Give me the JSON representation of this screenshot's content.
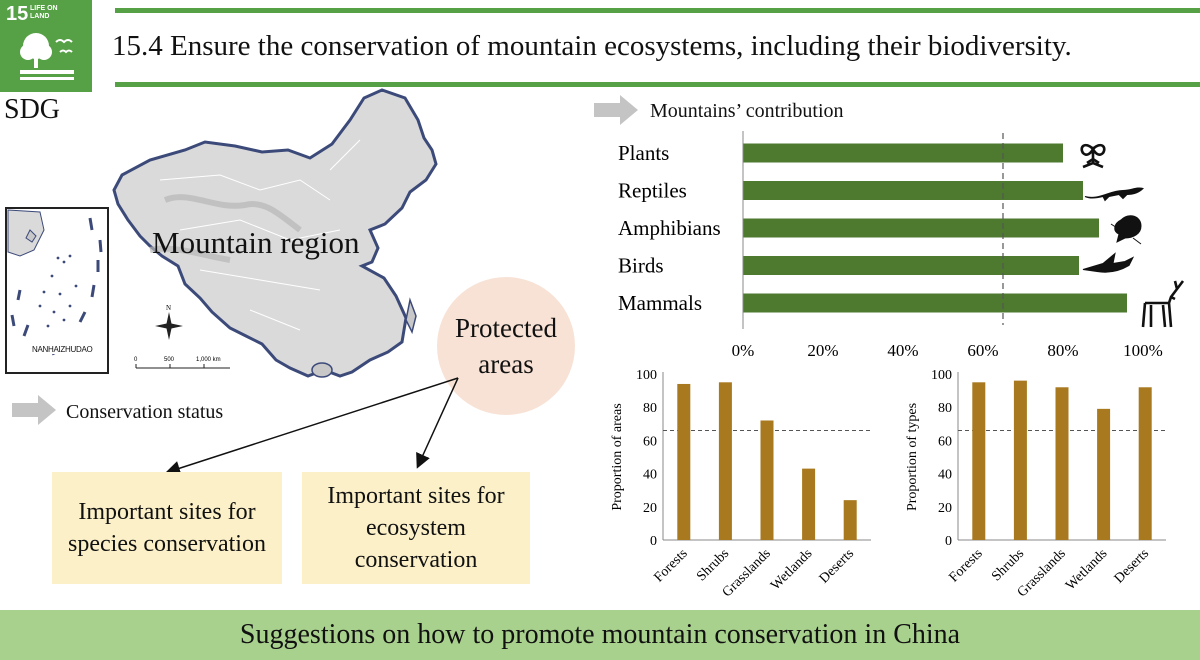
{
  "sdg": {
    "goal_number": "15",
    "goal_name": "LIFE ON LAND",
    "label": "SDG",
    "badge_color": "#56a045"
  },
  "title": "15.4 Ensure the conservation of mountain ecosystems, including their biodiversity.",
  "map": {
    "region_label": "Mountain region",
    "inset_label": "NANHAIZHUDAO",
    "north_label": "N",
    "scale_ticks": [
      "0",
      "500",
      "1,000 km"
    ]
  },
  "conservation_status": {
    "label": "Conservation status",
    "hub": "Protected areas",
    "site_species": "Important sites for species conservation",
    "site_ecosystem": "Important sites for ecosystem conservation"
  },
  "contribution": {
    "label": "Mountains’ contribution"
  },
  "footer": "Suggestions on how to promote mountain conservation in China",
  "colors": {
    "green_bar": "#4e7a30",
    "gold_bar": "#a8791f",
    "title_rule": "#56a045",
    "footer_band": "#a9d18e",
    "hub_fill": "#f8e2d5",
    "box_fill": "#fbf0c8"
  },
  "chart_data": [
    {
      "type": "bar",
      "orientation": "horizontal",
      "categories": [
        "Plants",
        "Reptiles",
        "Amphibians",
        "Birds",
        "Mammals"
      ],
      "values": [
        80,
        85,
        89,
        84,
        96
      ],
      "xlim": [
        0,
        100
      ],
      "x_ticks": [
        "0%",
        "20%",
        "40%",
        "60%",
        "80%",
        "100%"
      ],
      "reference_line": 65,
      "icons": [
        "plant-icon",
        "reptile-icon",
        "frog-icon",
        "bird-icon",
        "deer-icon"
      ]
    },
    {
      "type": "bar",
      "categories": [
        "Forests",
        "Shrubs",
        "Grasslands",
        "Wetlands",
        "Deserts"
      ],
      "values": [
        94,
        95,
        72,
        43,
        24
      ],
      "ylabel": "Proportion of areas",
      "ylim": [
        0,
        100
      ],
      "y_ticks": [
        "0",
        "20",
        "40",
        "60",
        "80",
        "100"
      ],
      "reference_line": 66
    },
    {
      "type": "bar",
      "categories": [
        "Forests",
        "Shrubs",
        "Grasslands",
        "Wetlands",
        "Deserts"
      ],
      "values": [
        95,
        96,
        92,
        79,
        92
      ],
      "ylabel": "Proportion of  types",
      "ylim": [
        0,
        100
      ],
      "y_ticks": [
        "0",
        "20",
        "40",
        "60",
        "80",
        "100"
      ],
      "reference_line": 66
    }
  ]
}
